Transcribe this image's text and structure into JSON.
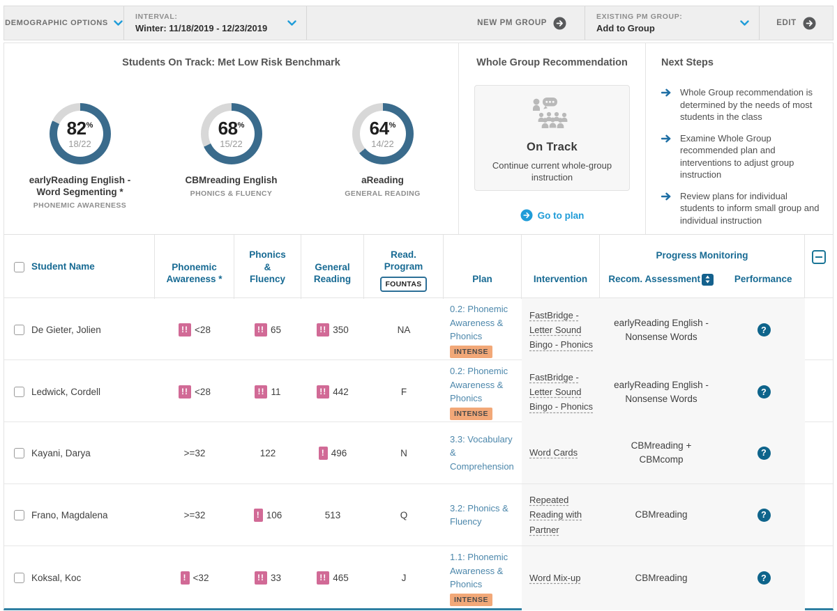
{
  "toolbar": {
    "demographic_options_label": "DEMOGRAPHIC OPTIONS",
    "interval_label": "INTERVAL:",
    "interval_value": "Winter: 11/18/2019 - 12/23/2019",
    "new_pm_group_label": "NEW PM GROUP",
    "existing_pm_group_label": "EXISTING PM GROUP:",
    "existing_pm_group_value": "Add to Group",
    "edit_label": "EDIT"
  },
  "summary": {
    "title": "Students On Track: Met Low Risk Benchmark",
    "percent_symbol": "%",
    "donuts": [
      {
        "value": 82,
        "percent": "82",
        "fraction": "18/22",
        "assessment": "earlyReading English -\nWord Segmenting *",
        "domain": "PHONEMIC AWARENESS"
      },
      {
        "value": 68,
        "percent": "68",
        "fraction": "15/22",
        "assessment": "CBMreading English",
        "domain": "PHONICS & FLUENCY"
      },
      {
        "value": 64,
        "percent": "64",
        "fraction": "14/22",
        "assessment": "aReading",
        "domain": "GENERAL READING"
      }
    ]
  },
  "recommendation": {
    "title": "Whole Group Recommendation",
    "status": "On Track",
    "description": "Continue current whole-group instruction",
    "link_label": "Go to plan"
  },
  "next_steps": {
    "title": "Next Steps",
    "items": [
      "Whole Group recommendation is determined by the needs of most students in the class",
      "Examine Whole Group recommended plan and interventions to adjust group instruction",
      "Review plans for individual students to inform small group and individual instruction"
    ]
  },
  "table": {
    "headers": {
      "student": "Student Name",
      "phonemic": "Phonemic\nAwareness *",
      "phonics": "Phonics\n&\nFluency",
      "general": "General\nReading",
      "read_program": "Read.\nProgram",
      "read_program_button": "FOUNTAS",
      "plan": "Plan",
      "intervention": "Intervention",
      "progress_monitoring": "Progress Monitoring",
      "recom_assessment": "Recom. Assessment",
      "performance": "Performance"
    },
    "intense_label": "INTENSE",
    "help_glyph": "?",
    "rows": [
      {
        "name": "De Gieter, Jolien",
        "phonemic": {
          "flag": "!!",
          "value": "<28"
        },
        "phonics": {
          "flag": "!!",
          "value": "65"
        },
        "general": {
          "flag": "!!",
          "value": "350"
        },
        "read_program": "NA",
        "plan": "0.2: Phonemic Awareness & Phonics",
        "intense": true,
        "intervention": "FastBridge -\nLetter Sound\nBingo - Phonics",
        "recom_assessment": "earlyReading English -\nNonsense Words"
      },
      {
        "name": "Ledwick, Cordell",
        "phonemic": {
          "flag": "!!",
          "value": "<28"
        },
        "phonics": {
          "flag": "!!",
          "value": "11"
        },
        "general": {
          "flag": "!!",
          "value": "442"
        },
        "read_program": "F",
        "plan": "0.2: Phonemic Awareness & Phonics",
        "intense": true,
        "intervention": "FastBridge -\nLetter Sound\nBingo - Phonics",
        "recom_assessment": "earlyReading English -\nNonsense Words"
      },
      {
        "name": "Kayani, Darya",
        "phonemic": {
          "flag": null,
          "value": ">=32"
        },
        "phonics": {
          "flag": null,
          "value": "122"
        },
        "general": {
          "flag": "!",
          "value": "496"
        },
        "read_program": "N",
        "plan": "3.3: Vocabulary & Comprehension",
        "intense": false,
        "intervention": "Word Cards",
        "recom_assessment": "CBMreading +\nCBMcomp"
      },
      {
        "name": "Frano, Magdalena",
        "phonemic": {
          "flag": null,
          "value": ">=32"
        },
        "phonics": {
          "flag": "!",
          "value": "106"
        },
        "general": {
          "flag": null,
          "value": "513"
        },
        "read_program": "Q",
        "plan": "3.2: Phonics & Fluency",
        "intense": false,
        "intervention": "Repeated\nReading with\nPartner",
        "recom_assessment": "CBMreading"
      },
      {
        "name": "Koksal, Koc",
        "phonemic": {
          "flag": "!",
          "value": "<32"
        },
        "phonics": {
          "flag": "!!",
          "value": "33"
        },
        "general": {
          "flag": "!!",
          "value": "465"
        },
        "read_program": "J",
        "plan": "1.1: Phonemic Awareness & Phonics",
        "intense": true,
        "intervention": "Word Mix-up",
        "recom_assessment": "CBMreading"
      }
    ]
  },
  "colors": {
    "donut_fill": "#3a6b8c",
    "donut_rest": "#d8d8d8",
    "accent_blue": "#1f9cd8",
    "header_teal": "#176a93",
    "flag_pink": "#d16a96",
    "intense_bg": "#f2a878",
    "plan_link_blue": "#4c87ab",
    "help_teal": "#0e648b"
  }
}
